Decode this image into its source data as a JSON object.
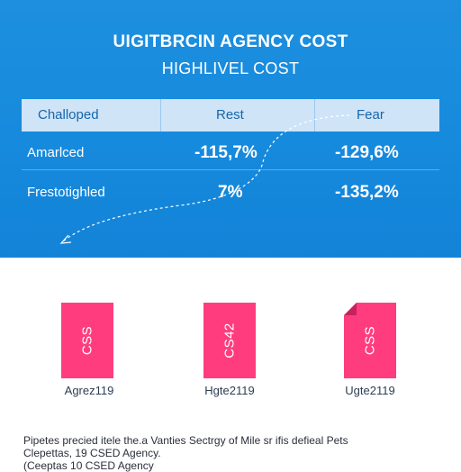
{
  "header": {
    "title": "UIGITBRCIN AGENCY COST",
    "subtitle": "HIGHLIVEL COST"
  },
  "table": {
    "columns": [
      "Challoped",
      "Rest",
      "Fear"
    ],
    "rows": [
      {
        "label": "Amarlced",
        "values": [
          "-115,7%",
          "-129,6%"
        ]
      },
      {
        "label": "Frestotighled",
        "values": [
          "7%",
          "-135,2%"
        ]
      }
    ]
  },
  "documents": [
    {
      "icon": "css",
      "label": "CSS",
      "caption": "Agrez119"
    },
    {
      "icon": "css",
      "label": "CS42",
      "caption": "Hgte2119"
    },
    {
      "icon": "css",
      "label": "CSS",
      "caption": "Ugte2119"
    }
  ],
  "footer": {
    "line1": "Pipetes precied itele the.a Vanties Sectrgy of Mile sr ifis defieal Pets",
    "line2": "Clepettas, 19 CSED Agency.",
    "line3": "(Ceeptas 10 CSED Agency"
  },
  "colors": {
    "panel": "#168add",
    "header_row": "#cfe4f7",
    "header_text": "#1666ab",
    "document": "#ff3d7e"
  }
}
